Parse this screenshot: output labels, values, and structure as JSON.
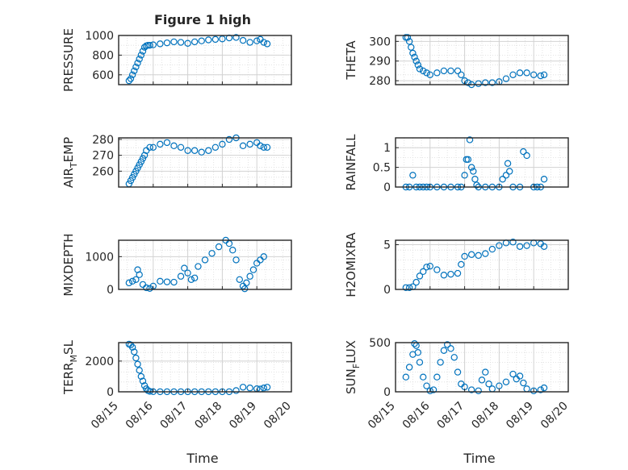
{
  "figure": {
    "title": "Figure 1 high",
    "xlabel": "Time"
  },
  "colors": {
    "marker": "#0072BD",
    "grid": "#dcdcdc",
    "axis": "#262626"
  },
  "chart_data": [
    {
      "type": "scatter",
      "ylabel_main": "PRESSURE",
      "ylabel_sub": "",
      "ylabel_tail": "",
      "ylim": [
        500,
        1000
      ],
      "yticks": [
        600,
        800,
        1000
      ],
      "xlim": [
        15,
        20
      ],
      "xtick_labels": [
        "08/15",
        "08/16",
        "08/17",
        "08/18",
        "08/19",
        "08/20"
      ],
      "grid": true,
      "x": [
        15.3,
        15.35,
        15.4,
        15.45,
        15.5,
        15.55,
        15.6,
        15.65,
        15.7,
        15.75,
        15.8,
        15.85,
        15.9,
        16.0,
        16.2,
        16.4,
        16.6,
        16.8,
        17.0,
        17.2,
        17.4,
        17.6,
        17.8,
        18.0,
        18.2,
        18.4,
        18.6,
        18.8,
        19.0,
        19.1,
        19.2,
        19.3
      ],
      "y": [
        540,
        560,
        600,
        640,
        680,
        720,
        760,
        800,
        840,
        880,
        895,
        900,
        900,
        905,
        915,
        925,
        935,
        930,
        920,
        935,
        945,
        955,
        960,
        965,
        975,
        980,
        950,
        930,
        945,
        960,
        930,
        915
      ]
    },
    {
      "type": "scatter",
      "ylabel_main": "THETA",
      "ylabel_sub": "",
      "ylabel_tail": "",
      "ylim": [
        278,
        303
      ],
      "yticks": [
        280,
        290,
        300
      ],
      "xlim": [
        15,
        20
      ],
      "xtick_labels": [
        "08/15",
        "08/16",
        "08/17",
        "08/18",
        "08/19",
        "08/20"
      ],
      "grid": true,
      "x": [
        15.3,
        15.35,
        15.4,
        15.45,
        15.5,
        15.55,
        15.6,
        15.65,
        15.7,
        15.8,
        15.9,
        16.0,
        16.2,
        16.4,
        16.6,
        16.8,
        16.9,
        17.0,
        17.1,
        17.2,
        17.4,
        17.6,
        17.8,
        18.0,
        18.2,
        18.4,
        18.6,
        18.8,
        19.0,
        19.2,
        19.3
      ],
      "y": [
        302,
        302,
        300,
        297,
        294,
        292,
        290,
        288,
        286,
        285,
        284,
        283,
        284,
        285,
        285,
        285,
        283,
        280,
        279,
        278,
        278.5,
        279,
        279,
        279.5,
        281,
        283,
        284,
        284,
        283,
        282.5,
        283
      ]
    },
    {
      "type": "scatter",
      "ylabel_main": "AIR",
      "ylabel_sub": "T",
      "ylabel_tail": "EMP",
      "ylim": [
        250,
        281
      ],
      "yticks": [
        260,
        270,
        280
      ],
      "xlim": [
        15,
        20
      ],
      "xtick_labels": [
        "08/15",
        "08/16",
        "08/17",
        "08/18",
        "08/19",
        "08/20"
      ],
      "grid": true,
      "x": [
        15.3,
        15.35,
        15.4,
        15.45,
        15.5,
        15.55,
        15.6,
        15.65,
        15.7,
        15.75,
        15.8,
        15.9,
        16.0,
        16.2,
        16.4,
        16.6,
        16.8,
        17.0,
        17.2,
        17.4,
        17.6,
        17.8,
        18.0,
        18.2,
        18.4,
        18.6,
        18.8,
        19.0,
        19.1,
        19.2,
        19.3
      ],
      "y": [
        252,
        254,
        256,
        258,
        260,
        262,
        264,
        266,
        268,
        270,
        273,
        275,
        275,
        277,
        278,
        276,
        275,
        273,
        273,
        272,
        273,
        275,
        277,
        280,
        281,
        276,
        277,
        278,
        276,
        275,
        275
      ]
    },
    {
      "type": "scatter",
      "ylabel_main": "RAINFALL",
      "ylabel_sub": "",
      "ylabel_tail": "",
      "ylim": [
        0,
        1.25
      ],
      "yticks": [
        0,
        0.5,
        1
      ],
      "xlim": [
        15,
        20
      ],
      "xtick_labels": [
        "08/15",
        "08/16",
        "08/17",
        "08/18",
        "08/19",
        "08/20"
      ],
      "grid": true,
      "x": [
        15.3,
        15.4,
        15.5,
        15.6,
        15.7,
        15.8,
        15.9,
        16.0,
        16.2,
        16.4,
        16.6,
        16.8,
        16.9,
        17.0,
        17.05,
        17.1,
        17.15,
        17.2,
        17.25,
        17.3,
        17.35,
        17.4,
        17.6,
        17.8,
        18.0,
        18.1,
        18.2,
        18.25,
        18.3,
        18.4,
        18.6,
        18.7,
        18.8,
        19.0,
        19.1,
        19.2,
        19.3
      ],
      "y": [
        0,
        0,
        0.3,
        0,
        0,
        0,
        0,
        0,
        0,
        0,
        0,
        0,
        0,
        0.3,
        0.7,
        0.7,
        1.2,
        0.5,
        0.4,
        0.2,
        0.05,
        0,
        0,
        0,
        0,
        0.2,
        0.3,
        0.6,
        0.4,
        0,
        0,
        0.9,
        0.8,
        0,
        0,
        0,
        0.2
      ]
    },
    {
      "type": "scatter",
      "ylabel_main": "MIXDEPTH",
      "ylabel_sub": "",
      "ylabel_tail": "",
      "ylim": [
        0,
        1500
      ],
      "yticks": [
        0,
        1000
      ],
      "xlim": [
        15,
        20
      ],
      "xtick_labels": [
        "08/15",
        "08/16",
        "08/17",
        "08/18",
        "08/19",
        "08/20"
      ],
      "grid": true,
      "x": [
        15.3,
        15.4,
        15.5,
        15.55,
        15.6,
        15.7,
        15.8,
        15.9,
        16.0,
        16.2,
        16.4,
        16.6,
        16.8,
        16.9,
        17.0,
        17.1,
        17.2,
        17.3,
        17.5,
        17.7,
        17.9,
        18.1,
        18.2,
        18.3,
        18.4,
        18.5,
        18.6,
        18.65,
        18.7,
        18.8,
        18.9,
        19.0,
        19.1,
        19.2
      ],
      "y": [
        200,
        250,
        300,
        600,
        450,
        150,
        50,
        30,
        100,
        250,
        230,
        220,
        400,
        650,
        500,
        300,
        350,
        700,
        900,
        1100,
        1300,
        1500,
        1400,
        1200,
        900,
        300,
        100,
        20,
        200,
        400,
        600,
        800,
        900,
        1000
      ]
    },
    {
      "type": "scatter",
      "ylabel_main": "H2OMIXRA",
      "ylabel_sub": "",
      "ylabel_tail": "",
      "ylim": [
        0,
        5.5
      ],
      "yticks": [
        0,
        5
      ],
      "xlim": [
        15,
        20
      ],
      "xtick_labels": [
        "08/15",
        "08/16",
        "08/17",
        "08/18",
        "08/19",
        "08/20"
      ],
      "grid": true,
      "x": [
        15.3,
        15.4,
        15.5,
        15.6,
        15.7,
        15.8,
        15.9,
        16.0,
        16.2,
        16.4,
        16.6,
        16.8,
        16.9,
        17.0,
        17.2,
        17.4,
        17.6,
        17.8,
        18.0,
        18.2,
        18.4,
        18.6,
        18.8,
        19.0,
        19.2,
        19.3
      ],
      "y": [
        0.2,
        0.2,
        0.3,
        0.8,
        1.5,
        2.0,
        2.5,
        2.6,
        2.2,
        1.6,
        1.7,
        1.8,
        2.8,
        3.7,
        3.9,
        3.8,
        4.0,
        4.5,
        4.9,
        5.2,
        5.3,
        4.8,
        4.9,
        5.2,
        5.1,
        4.8
      ]
    },
    {
      "type": "scatter",
      "ylabel_main": "TERR",
      "ylabel_sub": "M",
      "ylabel_tail": "SL",
      "ylim": [
        0,
        3200
      ],
      "yticks": [
        0,
        2000
      ],
      "xlim": [
        15,
        20
      ],
      "xtick_labels": [
        "08/15",
        "08/16",
        "08/17",
        "08/18",
        "08/19",
        "08/20"
      ],
      "grid": true,
      "x": [
        15.3,
        15.35,
        15.4,
        15.45,
        15.5,
        15.55,
        15.6,
        15.65,
        15.7,
        15.75,
        15.8,
        15.85,
        15.9,
        16.0,
        16.2,
        16.4,
        16.6,
        16.8,
        17.0,
        17.2,
        17.4,
        17.6,
        17.8,
        18.0,
        18.2,
        18.4,
        18.6,
        18.8,
        19.0,
        19.1,
        19.2,
        19.3
      ],
      "y": [
        3100,
        3050,
        2900,
        2600,
        2200,
        1800,
        1400,
        1000,
        700,
        400,
        200,
        80,
        30,
        10,
        5,
        5,
        5,
        5,
        5,
        5,
        5,
        5,
        5,
        5,
        5,
        80,
        300,
        250,
        200,
        180,
        250,
        300
      ]
    },
    {
      "type": "scatter",
      "ylabel_main": "SUN",
      "ylabel_sub": "F",
      "ylabel_tail": "LUX",
      "ylim": [
        0,
        500
      ],
      "yticks": [
        0,
        500
      ],
      "xlim": [
        15,
        20
      ],
      "xtick_labels": [
        "08/15",
        "08/16",
        "08/17",
        "08/18",
        "08/19",
        "08/20"
      ],
      "grid": true,
      "x": [
        15.3,
        15.4,
        15.5,
        15.55,
        15.6,
        15.65,
        15.7,
        15.8,
        15.9,
        16.0,
        16.1,
        16.2,
        16.3,
        16.4,
        16.5,
        16.6,
        16.7,
        16.8,
        16.9,
        17.0,
        17.2,
        17.4,
        17.5,
        17.6,
        17.7,
        17.8,
        18.0,
        18.2,
        18.4,
        18.5,
        18.6,
        18.7,
        18.8,
        19.0,
        19.2,
        19.3
      ],
      "y": [
        150,
        250,
        380,
        490,
        470,
        400,
        300,
        150,
        60,
        10,
        20,
        150,
        300,
        420,
        480,
        440,
        350,
        200,
        80,
        50,
        20,
        10,
        120,
        200,
        80,
        30,
        60,
        100,
        180,
        130,
        160,
        90,
        30,
        10,
        20,
        40
      ]
    }
  ]
}
